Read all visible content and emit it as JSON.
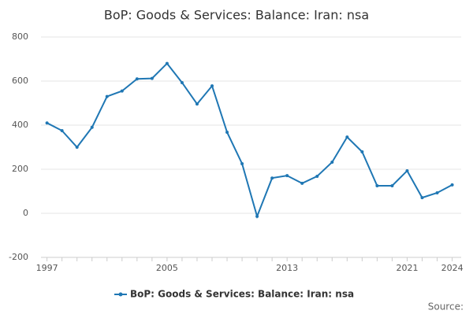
{
  "chart_data": {
    "type": "line",
    "title": "BoP: Goods & Services: Balance: Iran: nsa",
    "x": [
      1997,
      1998,
      1999,
      2000,
      2001,
      2002,
      2003,
      2004,
      2005,
      2006,
      2007,
      2008,
      2009,
      2010,
      2011,
      2012,
      2013,
      2014,
      2015,
      2016,
      2017,
      2018,
      2019,
      2020,
      2021,
      2022,
      2023,
      2024
    ],
    "series": [
      {
        "name": "BoP: Goods & Services: Balance: Iran: nsa",
        "color": "#1f77b4",
        "values": [
          410,
          375,
          300,
          390,
          530,
          555,
          610,
          612,
          680,
          593,
          496,
          578,
          368,
          225,
          -14,
          160,
          171,
          136,
          168,
          232,
          346,
          279,
          125,
          125,
          193,
          71,
          93,
          129
        ]
      }
    ],
    "xlim": [
      1996.6,
      2024.6
    ],
    "xticks": [
      1997,
      2005,
      2013,
      2021,
      2024
    ],
    "ylim": [
      -200,
      800
    ],
    "yticks": [
      -200,
      0,
      200,
      400,
      600,
      800
    ],
    "grid": true,
    "legend": "bottom",
    "source": "Source:"
  }
}
